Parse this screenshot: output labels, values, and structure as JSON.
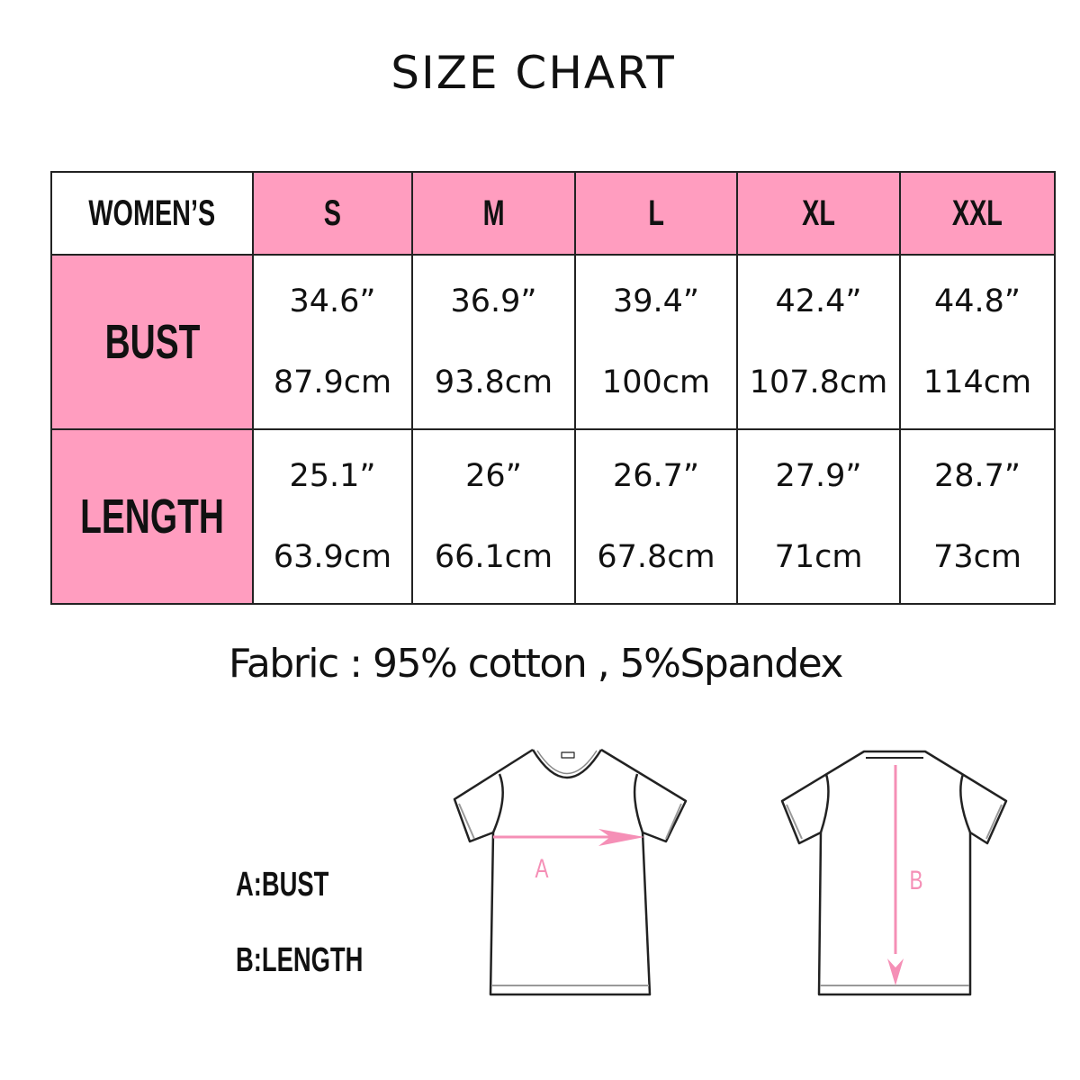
{
  "title": "SIZE CHART",
  "table": {
    "corner": "WOMEN’S",
    "sizes": [
      "S",
      "M",
      "L",
      "XL",
      "XXL"
    ],
    "rows": [
      {
        "label": "BUST",
        "inches": [
          "34.6”",
          "36.9”",
          "39.4”",
          "42.4”",
          "44.8”"
        ],
        "cm": [
          "87.9cm",
          "93.8cm",
          "100cm",
          "107.8cm",
          "114cm"
        ]
      },
      {
        "label": "LENGTH",
        "inches": [
          "25.1”",
          "26”",
          "26.7”",
          "27.9”",
          "28.7”"
        ],
        "cm": [
          "63.9cm",
          "66.1cm",
          "67.8cm",
          "71cm",
          "73cm"
        ]
      }
    ]
  },
  "fabric": "Fabric : 95% cotton , 5%Spandex",
  "legend": {
    "a": "A:BUST",
    "b": "B:LENGTH"
  },
  "diagram": {
    "front_label": "A",
    "back_label": "B"
  },
  "colors": {
    "accent": "#ff9dbf",
    "line": "#222222"
  }
}
